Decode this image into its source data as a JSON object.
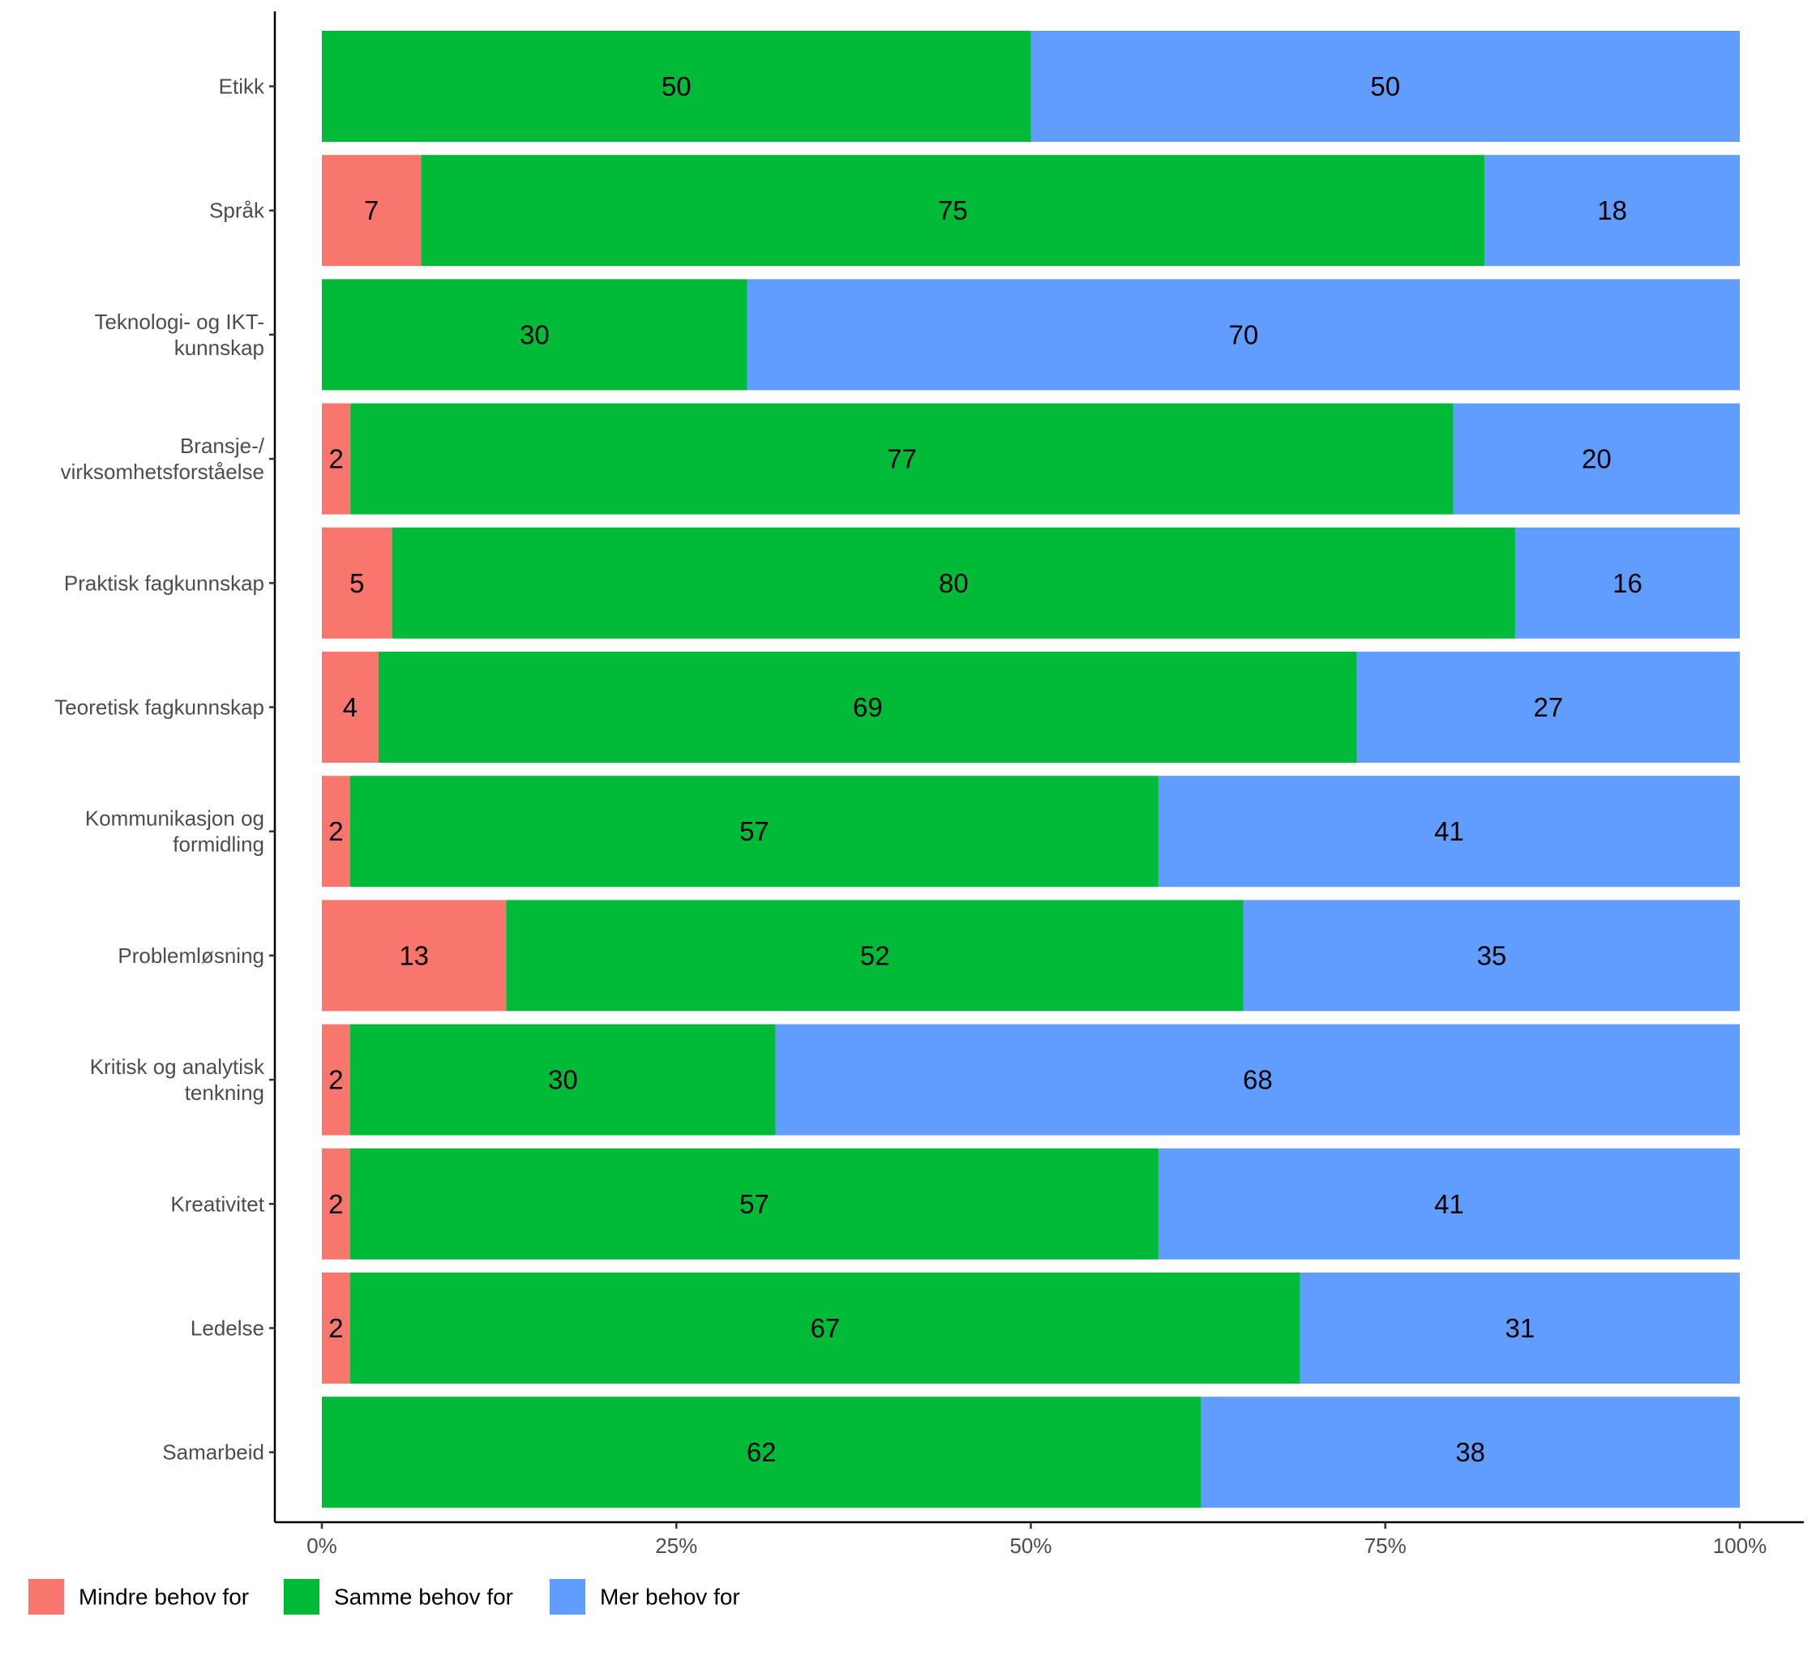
{
  "chart_data": {
    "type": "bar",
    "orientation": "horizontal",
    "stacked": "percent",
    "categories": [
      [
        "Etikk"
      ],
      [
        "Språk"
      ],
      [
        "Teknologi- og IKT-",
        "kunnskap"
      ],
      [
        "Bransje-/",
        "virksomhetsforståelse"
      ],
      [
        "Praktisk fagkunnskap"
      ],
      [
        "Teoretisk fagkunnskap"
      ],
      [
        "Kommunikasjon og",
        "formidling"
      ],
      [
        "Problemløsning"
      ],
      [
        "Kritisk og analytisk",
        "tenkning"
      ],
      [
        "Kreativitet"
      ],
      [
        "Ledelse"
      ],
      [
        "Samarbeid"
      ]
    ],
    "series": [
      {
        "name": "Mindre behov for",
        "color": "#F8766D",
        "values": [
          0,
          7,
          0,
          2,
          5,
          4,
          2,
          13,
          2,
          2,
          2,
          0
        ],
        "labels": [
          "",
          "7",
          "",
          "2",
          "5",
          "4",
          "2",
          "13",
          "2",
          "2",
          "2",
          ""
        ]
      },
      {
        "name": "Samme behov for",
        "color": "#00BA38",
        "values": [
          50,
          75,
          30,
          77,
          80,
          69,
          57,
          52,
          30,
          57,
          67,
          62
        ],
        "labels": [
          "50",
          "75",
          "30",
          "77",
          "80",
          "69",
          "57",
          "52",
          "30",
          "57",
          "67",
          "62"
        ]
      },
      {
        "name": "Mer behov for",
        "color": "#619CFF",
        "values": [
          50,
          18,
          70,
          20,
          16,
          27,
          41,
          35,
          68,
          41,
          31,
          38
        ],
        "labels": [
          "50",
          "18",
          "70",
          "20",
          "16",
          "27",
          "41",
          "35",
          "68",
          "41",
          "31",
          "38"
        ]
      }
    ],
    "xlim": [
      0,
      1
    ],
    "xticks": [
      {
        "value": 0,
        "label": "0%"
      },
      {
        "value": 0.25,
        "label": "25%"
      },
      {
        "value": 0.5,
        "label": "50%"
      },
      {
        "value": 0.75,
        "label": "75%"
      },
      {
        "value": 1,
        "label": "100%"
      }
    ],
    "title": "",
    "xlabel": "",
    "ylabel": "",
    "grid": false,
    "legend": {
      "position": "bottom-left",
      "orientation": "horizontal"
    }
  }
}
